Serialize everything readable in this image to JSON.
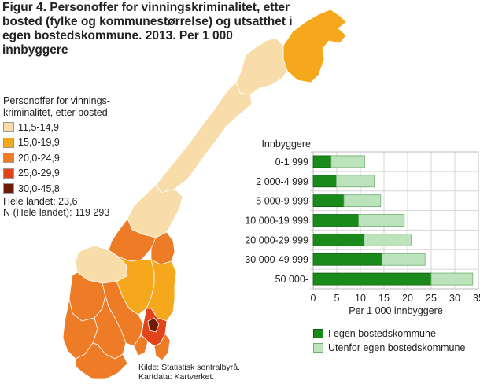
{
  "title": "Figur 4. Personoffer for vinningskriminalitet, etter bosted (fylke og kommunestørrelse) og utsatthet i egen bostedskommune. 2013. Per 1 000 innbyggere",
  "map": {
    "legend_title": "Personoffer for vinnings-kriminalitet, etter bosted",
    "legend_items": [
      {
        "label": "11,5-14,9",
        "color": "#f8dcaa"
      },
      {
        "label": "15,0-19,9",
        "color": "#f6a81c"
      },
      {
        "label": "20,0-24,9",
        "color": "#ee7b26"
      },
      {
        "label": "25,0-29,9",
        "color": "#e04418"
      },
      {
        "label": "30,0-45,8",
        "color": "#6e1c08"
      }
    ],
    "total_line1": "Hele landet: 23,6",
    "total_line2": "N (Hele landet): 119 293"
  },
  "source_line1": "Kilde: Statistisk sentralbyrå.",
  "source_line2": "Kartdata: Kartverket.",
  "chart_data": {
    "type": "bar",
    "orientation": "horizontal",
    "stacked": true,
    "ylabel": "Innbyggere",
    "xlabel": "Per 1 000 innbyggere",
    "xlim": [
      0,
      35
    ],
    "xticks": [
      0,
      5,
      10,
      15,
      20,
      25,
      30,
      35
    ],
    "categories": [
      "0-1 999",
      "2 000-4 999",
      "5 000-9 999",
      "10 000-19 999",
      "20 000-29 999",
      "30 000-49 999",
      "50 000-"
    ],
    "series": [
      {
        "name": "I egen bostedskommune",
        "color": "#1a8a1a",
        "values": [
          3.8,
          4.9,
          6.5,
          9.6,
          10.8,
          14.6,
          25.0
        ]
      },
      {
        "name": "Utenfor egen bostedskommune",
        "color": "#bce3bc",
        "values": [
          7.1,
          8.0,
          7.8,
          9.7,
          10.0,
          9.1,
          8.8
        ]
      }
    ]
  }
}
